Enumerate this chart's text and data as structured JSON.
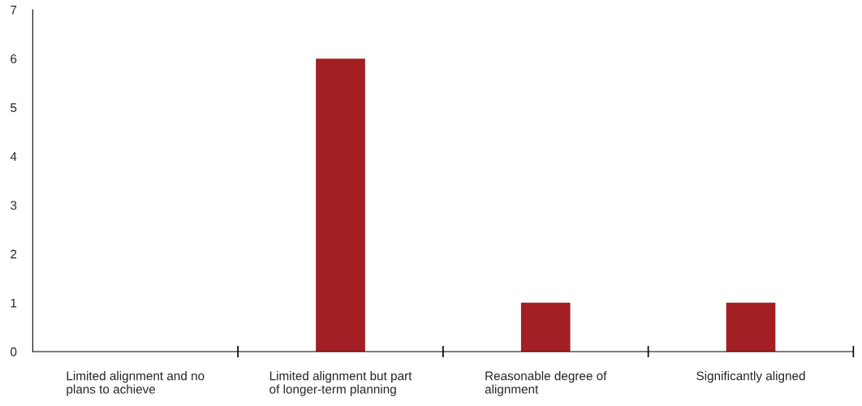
{
  "chart_data": {
    "type": "bar",
    "categories": [
      "Limited alignment and no plans to achieve",
      "Limited alignment but part of longer-term planning",
      "Reasonable degree of alignment",
      "Significantly aligned"
    ],
    "values": [
      0,
      6,
      1,
      1
    ],
    "color": "#a31f24",
    "ylim": [
      0,
      7
    ],
    "yticks": [
      0,
      1,
      2,
      3,
      4,
      5,
      6,
      7
    ],
    "grid": false,
    "legend": false
  }
}
